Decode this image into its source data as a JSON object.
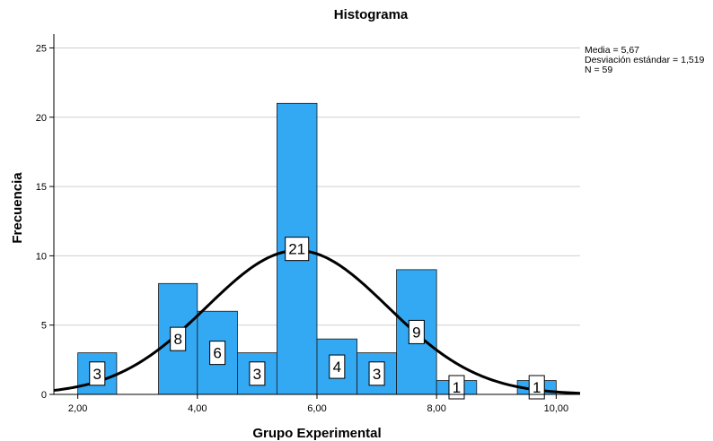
{
  "chart_data": {
    "type": "bar",
    "title": "Histograma",
    "xlabel": "Grupo Experimental",
    "ylabel": "Frecuencia",
    "xlim": [
      1.6,
      10.4
    ],
    "ylim": [
      0,
      26
    ],
    "x_ticks": [
      2,
      4,
      6,
      8,
      10
    ],
    "x_tick_labels": [
      "2,00",
      "4,00",
      "6,00",
      "8,00",
      "10,00"
    ],
    "y_ticks": [
      0,
      5,
      10,
      15,
      20,
      25
    ],
    "y_tick_labels": [
      "0",
      "5",
      "10",
      "15",
      "20",
      "25"
    ],
    "bins": [
      {
        "x0": 2.0,
        "x1": 2.65,
        "value": 3,
        "label": "3"
      },
      {
        "x0": 3.35,
        "x1": 4.0,
        "value": 8,
        "label": "8"
      },
      {
        "x0": 4.0,
        "x1": 4.67,
        "value": 6,
        "label": "6"
      },
      {
        "x0": 4.67,
        "x1": 5.33,
        "value": 3,
        "label": "3"
      },
      {
        "x0": 5.33,
        "x1": 6.0,
        "value": 21,
        "label": "21"
      },
      {
        "x0": 6.0,
        "x1": 6.67,
        "value": 4,
        "label": "4"
      },
      {
        "x0": 6.67,
        "x1": 7.33,
        "value": 3,
        "label": "3"
      },
      {
        "x0": 7.33,
        "x1": 8.0,
        "value": 9,
        "label": "9"
      },
      {
        "x0": 8.0,
        "x1": 8.67,
        "value": 1,
        "label": "1"
      },
      {
        "x0": 9.35,
        "x1": 10.0,
        "value": 1,
        "label": "1"
      }
    ],
    "normal_curve": {
      "mean": 5.67,
      "sd": 1.519,
      "n": 59,
      "bin_width": 0.67
    },
    "stats_text": [
      "Media = 5,67",
      "Desviación estándar = 1,519",
      "N = 59"
    ],
    "grid": true,
    "colors": {
      "bar": "#33a8f3",
      "bar_edge": "#1a1a1a",
      "curve": "#000000",
      "grid": "#cfcfcf"
    }
  }
}
